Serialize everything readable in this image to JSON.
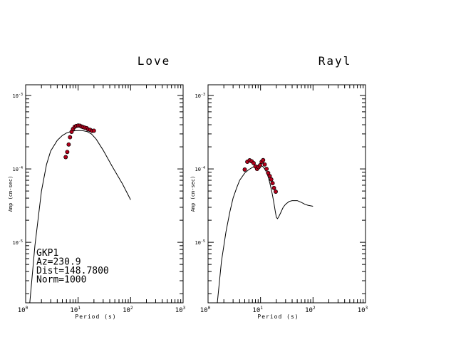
{
  "chart_data": [
    {
      "type": "line",
      "title": "Love",
      "xlabel": "Period (s)",
      "ylabel": "Amp (cm-sec)",
      "x_scale": "log",
      "y_scale": "log",
      "xlim": [
        1,
        1000
      ],
      "ylim": [
        1.5e-06,
        0.0014
      ],
      "x_ticks": [
        1,
        10,
        100,
        1000
      ],
      "x_tick_labels": [
        {
          "base": "10",
          "exp": "0"
        },
        {
          "base": "10",
          "exp": "1"
        },
        {
          "base": "10",
          "exp": "2"
        },
        {
          "base": "10",
          "exp": "3"
        }
      ],
      "y_ticks": [
        1e-05,
        0.0001,
        0.001
      ],
      "y_tick_labels": [
        {
          "base": "10",
          "exp": "-5"
        },
        {
          "base": "10",
          "exp": "-4"
        },
        {
          "base": "10",
          "exp": "-3"
        }
      ],
      "series": [
        {
          "kind": "line",
          "color": "#000000",
          "x": [
            1.2,
            1.5,
            2.0,
            2.5,
            3.0,
            4.0,
            5.0,
            6.0,
            7.0,
            8.0,
            9.0,
            10.0,
            12.0,
            15.0,
            18.0,
            22.0,
            30.0,
            45.0,
            70.0,
            100.0
          ],
          "y": [
            1.5e-06,
            9e-06,
            5e-05,
            0.000115,
            0.000175,
            0.000245,
            0.000285,
            0.000308,
            0.00032,
            0.000328,
            0.000332,
            0.000333,
            0.000333,
            0.000322,
            0.000298,
            0.000255,
            0.00018,
            0.000107,
            6.25e-05,
            3.8e-05
          ]
        },
        {
          "kind": "scatter",
          "color": "#b3001b",
          "x": [
            5.8,
            6.2,
            6.6,
            7.0,
            7.5,
            8.0,
            8.6,
            9.2,
            10.0,
            10.8,
            11.6,
            12.4,
            13.4,
            14.5,
            15.6,
            17.0,
            18.5,
            20.0
          ],
          "y": [
            0.000145,
            0.00017,
            0.000215,
            0.00027,
            0.00032,
            0.00035,
            0.000375,
            0.000385,
            0.00039,
            0.000388,
            0.000378,
            0.000372,
            0.000365,
            0.00036,
            0.000345,
            0.00034,
            0.00033,
            0.000332
          ]
        }
      ],
      "annotations": [
        "GKP1",
        "Az=230.9",
        "Dist=148.7800",
        "Norm=1000"
      ]
    },
    {
      "type": "line",
      "title": "Rayl",
      "xlabel": "Period (s)",
      "ylabel": "Amp (cm-sec)",
      "x_scale": "log",
      "y_scale": "log",
      "xlim": [
        1,
        1000
      ],
      "ylim": [
        1.5e-06,
        0.0014
      ],
      "x_ticks": [
        1,
        10,
        100,
        1000
      ],
      "x_tick_labels": [
        {
          "base": "10",
          "exp": "0"
        },
        {
          "base": "10",
          "exp": "1"
        },
        {
          "base": "10",
          "exp": "2"
        },
        {
          "base": "10",
          "exp": "3"
        }
      ],
      "y_ticks": [
        1e-05,
        0.0001,
        0.001
      ],
      "y_tick_labels": [
        {
          "base": "10",
          "exp": "-5"
        },
        {
          "base": "10",
          "exp": "-4"
        },
        {
          "base": "10",
          "exp": "-3"
        }
      ],
      "series": [
        {
          "kind": "line",
          "color": "#000000",
          "x": [
            1.5,
            1.8,
            2.2,
            2.6,
            3.0,
            3.5,
            4.0,
            5.0,
            6.0,
            7.0,
            8.0,
            9.0,
            10.0,
            11.0,
            12.0,
            13.0,
            14.0,
            15.0,
            16.0,
            17.0,
            18.0,
            19.0,
            20.0,
            21.0,
            22.0,
            24.0,
            27.0,
            30.0,
            35.0,
            40.0,
            50.0,
            60.0,
            70.0,
            80.0,
            100.0
          ],
          "y": [
            1.5e-06,
            5.5e-06,
            1.4e-05,
            2.6e-05,
            4e-05,
            5.5e-05,
            7e-05,
            8.8e-05,
            9.8e-05,
            0.000105,
            0.00011,
            0.000112,
            0.000112,
            0.000108,
            0.0001,
            9e-05,
            7.8e-05,
            6.5e-05,
            5.3e-05,
            4.3e-05,
            3.4e-05,
            2.7e-05,
            2.2e-05,
            2.1e-05,
            2.2e-05,
            2.5e-05,
            3e-05,
            3.3e-05,
            3.6e-05,
            3.7e-05,
            3.7e-05,
            3.5e-05,
            3.3e-05,
            3.2e-05,
            3.1e-05
          ]
        },
        {
          "kind": "scatter",
          "color": "#b3001b",
          "x": [
            5.0,
            5.6,
            6.2,
            6.8,
            7.4,
            8.0,
            8.6,
            9.2,
            9.8,
            10.5,
            11.2,
            12.0,
            13.0,
            14.0,
            15.0,
            16.0,
            17.0,
            18.0,
            19.5
          ],
          "y": [
            9.8e-05,
            0.000125,
            0.000131,
            0.000127,
            0.00012,
            0.000108,
            0.0001,
            0.000106,
            0.000112,
            0.000125,
            0.000132,
            0.000115,
            0.0001,
            8.8e-05,
            8e-05,
            7.2e-05,
            6.4e-05,
            5.5e-05,
            4.9e-05
          ]
        }
      ]
    }
  ]
}
